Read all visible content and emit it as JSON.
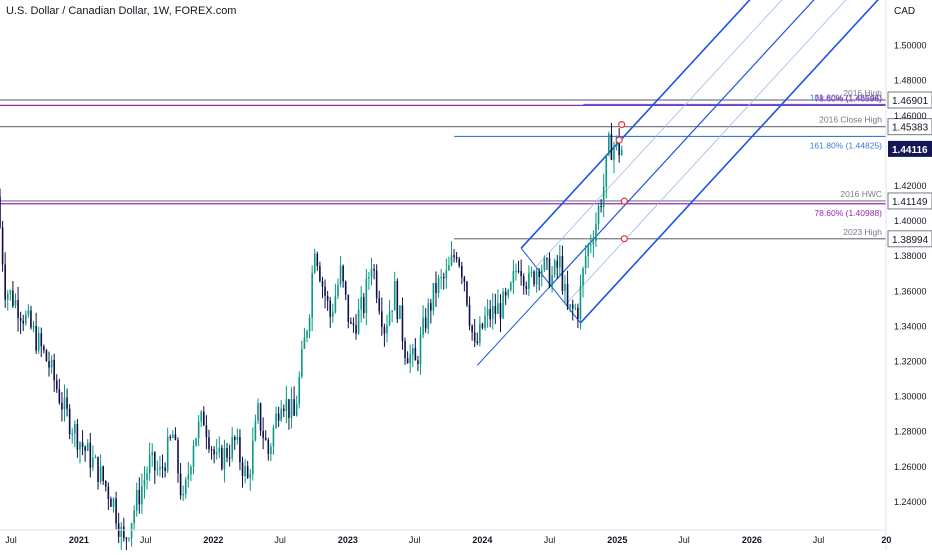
{
  "header": {
    "title": "U.S. Dollar / Canadian Dollar, 1W, FOREX.com",
    "currency": "CAD"
  },
  "colors": {
    "up": "#089981",
    "down": "#0d0e4a",
    "channel": "#1e53e5",
    "fib_blue": "#3c78d8",
    "fib_pink": "#9c27b0",
    "gray_level": "#787b86",
    "current_badge": "#131555",
    "marker": "#e53935"
  },
  "chart_data": {
    "type": "candlestick",
    "title": "U.S. Dollar / Canadian Dollar, 1W, FOREX.com",
    "ylim": [
      1.224,
      1.526
    ],
    "y_ticks": [
      "1.24000",
      "1.26000",
      "1.28000",
      "1.30000",
      "1.32000",
      "1.34000",
      "1.36000",
      "1.38000",
      "1.40000",
      "1.42000",
      "1.46000",
      "1.48000",
      "1.50000"
    ],
    "x_range": [
      "2020-06-01",
      "2026-12-31"
    ],
    "x_ticks": [
      {
        "date": "2020-07-01",
        "label": "Jul"
      },
      {
        "date": "2021-01-01",
        "label": "2021"
      },
      {
        "date": "2021-07-01",
        "label": "Jul"
      },
      {
        "date": "2022-01-01",
        "label": "2022"
      },
      {
        "date": "2022-07-01",
        "label": "Jul"
      },
      {
        "date": "2023-01-01",
        "label": "2023"
      },
      {
        "date": "2023-07-01",
        "label": "Jul"
      },
      {
        "date": "2024-01-01",
        "label": "2024"
      },
      {
        "date": "2024-07-01",
        "label": "Jul"
      },
      {
        "date": "2025-01-01",
        "label": "2025"
      },
      {
        "date": "2025-07-01",
        "label": "Jul"
      },
      {
        "date": "2026-01-01",
        "label": "2026"
      },
      {
        "date": "2026-07-01",
        "label": "Jul"
      },
      {
        "date": "2027-01-01",
        "label": "20"
      }
    ],
    "path_points": [
      [
        "2020-06-01",
        1.414
      ],
      [
        "2020-06-22",
        1.362
      ],
      [
        "2020-07-27",
        1.352
      ],
      [
        "2020-09-07",
        1.336
      ],
      [
        "2020-10-19",
        1.318
      ],
      [
        "2020-11-30",
        1.292
      ],
      [
        "2021-01-18",
        1.272
      ],
      [
        "2021-03-01",
        1.258
      ],
      [
        "2021-04-12",
        1.24
      ],
      [
        "2021-05-10",
        1.216
      ],
      [
        "2021-06-07",
        1.236
      ],
      [
        "2021-07-19",
        1.262
      ],
      [
        "2021-08-16",
        1.256
      ],
      [
        "2021-09-20",
        1.278
      ],
      [
        "2021-10-18",
        1.238
      ],
      [
        "2021-11-15",
        1.276
      ],
      [
        "2021-12-13",
        1.288
      ],
      [
        "2022-01-17",
        1.262
      ],
      [
        "2022-03-07",
        1.274
      ],
      [
        "2022-04-11",
        1.252
      ],
      [
        "2022-05-09",
        1.29
      ],
      [
        "2022-06-06",
        1.268
      ],
      [
        "2022-07-11",
        1.301
      ],
      [
        "2022-08-15",
        1.288
      ],
      [
        "2022-09-26",
        1.352
      ],
      [
        "2022-10-10",
        1.388
      ],
      [
        "2022-10-31",
        1.364
      ],
      [
        "2022-11-21",
        1.346
      ],
      [
        "2022-12-19",
        1.37
      ],
      [
        "2023-01-16",
        1.338
      ],
      [
        "2023-02-20",
        1.352
      ],
      [
        "2023-03-13",
        1.378
      ],
      [
        "2023-04-17",
        1.34
      ],
      [
        "2023-05-15",
        1.36
      ],
      [
        "2023-06-12",
        1.328
      ],
      [
        "2023-07-10",
        1.318
      ],
      [
        "2023-08-07",
        1.344
      ],
      [
        "2023-09-04",
        1.362
      ],
      [
        "2023-10-02",
        1.368
      ],
      [
        "2023-10-30",
        1.384
      ],
      [
        "2023-11-20",
        1.368
      ],
      [
        "2023-12-18",
        1.326
      ],
      [
        "2024-01-15",
        1.344
      ],
      [
        "2024-02-19",
        1.35
      ],
      [
        "2024-03-18",
        1.354
      ],
      [
        "2024-04-15",
        1.378
      ],
      [
        "2024-05-13",
        1.364
      ],
      [
        "2024-06-10",
        1.376
      ],
      [
        "2024-07-15",
        1.368
      ],
      [
        "2024-08-05",
        1.376
      ],
      [
        "2024-08-26",
        1.348
      ],
      [
        "2024-09-23",
        1.35
      ],
      [
        "2024-10-14",
        1.38
      ],
      [
        "2024-11-11",
        1.4
      ],
      [
        "2024-12-02",
        1.42
      ],
      [
        "2024-12-16",
        1.442
      ],
      [
        "2025-01-06",
        1.444
      ],
      [
        "2025-01-13",
        1.441
      ]
    ],
    "levels": [
      {
        "value": 1.46901,
        "price_label": "1.46901",
        "line_label": "2016 High",
        "style": "gray",
        "x_start": "2020-06-01"
      },
      {
        "value": 1.46644,
        "price_label": "",
        "line_label": "161.80% (1.46644)",
        "style": "blue",
        "x_start": "2024-10-01"
      },
      {
        "value": 1.46596,
        "price_label": "",
        "line_label": "78.60% (1.46596)",
        "style": "pink",
        "x_start": "2020-06-01"
      },
      {
        "value": 1.45383,
        "price_label": "1.45383",
        "line_label": "2016 Close High",
        "style": "gray",
        "x_start": "2020-06-01"
      },
      {
        "value": 1.44825,
        "price_label": "",
        "line_label": "161.80% (1.44825)",
        "style": "blue",
        "x_start": "2023-10-16"
      },
      {
        "value": 1.41149,
        "price_label": "1.41149",
        "line_label": "2016 HWC",
        "style": "gray",
        "x_start": "2020-06-01"
      },
      {
        "value": 1.40988,
        "price_label": "",
        "line_label": "78.60% (1.40988)",
        "style": "pink",
        "x_start": "2020-06-01"
      },
      {
        "value": 1.38994,
        "price_label": "1.38994",
        "line_label": "2023 High",
        "style": "gray",
        "x_start": "2023-10-16"
      }
    ],
    "current_price": {
      "value": 1.44116,
      "label": "1.44116"
    },
    "pitchfork": {
      "pivot_a": [
        "2023-12-18",
        1.3178
      ],
      "pivot_b": [
        "2024-04-15",
        1.3846
      ],
      "pivot_c": [
        "2024-09-23",
        1.342
      ],
      "inner_fractions": [
        0.25,
        0.5,
        0.75
      ],
      "end_date": "2026-12-31"
    },
    "markers": [
      [
        "2025-01-13",
        1.455
      ],
      [
        "2025-01-06",
        1.4462
      ],
      [
        "2025-01-20",
        1.4114
      ],
      [
        "2025-01-20",
        1.39
      ]
    ],
    "grid": false,
    "legend": "none"
  }
}
